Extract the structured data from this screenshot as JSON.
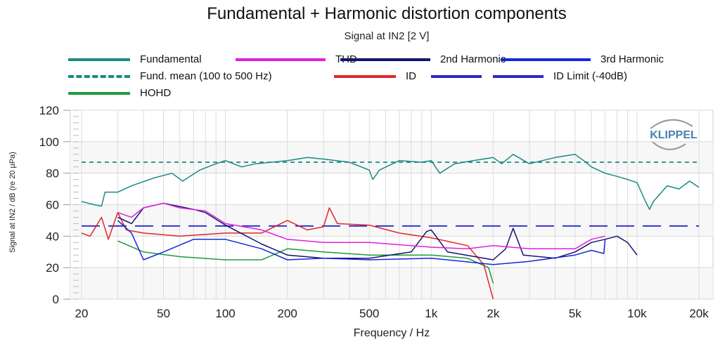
{
  "chart_data": {
    "type": "line",
    "title": "Fundamental + Harmonic distortion components",
    "subtitle": "Signal at IN2 [2 V]",
    "xlabel": "Frequency / Hz",
    "ylabel": "Signal at IN2 / dB (re 20 µPa)",
    "xscale": "log",
    "xlim": [
      17.5,
      23000
    ],
    "ylim": [
      0,
      120
    ],
    "grid": true,
    "legend_placement": "top",
    "yticks": [
      "0",
      "20",
      "40",
      "60",
      "80",
      "100",
      "120"
    ],
    "xticks": [
      {
        "v": 20,
        "l": "20"
      },
      {
        "v": 50,
        "l": "50"
      },
      {
        "v": 100,
        "l": "100"
      },
      {
        "v": 200,
        "l": "200"
      },
      {
        "v": 500,
        "l": "500"
      },
      {
        "v": 1000,
        "l": "1k"
      },
      {
        "v": 2000,
        "l": "2k"
      },
      {
        "v": 5000,
        "l": "5k"
      },
      {
        "v": 10000,
        "l": "10k"
      },
      {
        "v": 20000,
        "l": "20k"
      }
    ],
    "logo": "KLIPPEL",
    "series": [
      {
        "name": "Fundamental",
        "color": "#1a8a84",
        "dash": "solid",
        "x": [
          20,
          23,
          25,
          26,
          30,
          35,
          45,
          55,
          62,
          75,
          90,
          100,
          120,
          140,
          200,
          250,
          300,
          400,
          500,
          520,
          560,
          700,
          900,
          1000,
          1100,
          1300,
          1600,
          2000,
          2200,
          2500,
          3000,
          4000,
          5000,
          5500,
          6000,
          7000,
          8000,
          9000,
          10000,
          11000,
          11500,
          12000,
          14000,
          16000,
          18000,
          20000
        ],
        "y": [
          62,
          60,
          59,
          68,
          68,
          72,
          77,
          80,
          75,
          82,
          86,
          88,
          84,
          86,
          88,
          90,
          89,
          87,
          82,
          76,
          82,
          88,
          87,
          88,
          80,
          86,
          88,
          90,
          86,
          92,
          86,
          90,
          92,
          88,
          84,
          80,
          78,
          76,
          74,
          62,
          57,
          62,
          72,
          70,
          75,
          71
        ]
      },
      {
        "name": "Fund. mean (100 to 500 Hz)",
        "color": "#1a8a84",
        "dash": "short",
        "x": [
          20,
          20000
        ],
        "y": [
          87,
          87
        ]
      },
      {
        "name": "THD",
        "color": "#e020e0",
        "dash": "solid",
        "x": [
          30,
          35,
          40,
          50,
          60,
          80,
          100,
          150,
          200,
          300,
          500,
          1000,
          1500,
          2000,
          3000,
          5000,
          6000,
          7000
        ],
        "y": [
          55,
          52,
          58,
          61,
          58,
          56,
          48,
          44,
          38,
          36,
          36,
          33,
          32,
          34,
          32,
          32,
          38,
          40
        ]
      },
      {
        "name": "2nd Harmonic",
        "color": "#14146e",
        "dash": "solid",
        "x": [
          30,
          35,
          40,
          50,
          70,
          80,
          100,
          150,
          200,
          300,
          500,
          800,
          950,
          1000,
          1200,
          2000,
          2300,
          2500,
          2800,
          4000,
          5000,
          6000,
          7000,
          8000,
          9000,
          10000
        ],
        "y": [
          52,
          48,
          58,
          61,
          57,
          55,
          47,
          35,
          28,
          26,
          26,
          30,
          43,
          44,
          30,
          25,
          32,
          45,
          28,
          26,
          30,
          36,
          38,
          40,
          36,
          28
        ]
      },
      {
        "name": "3rd Harmonic",
        "color": "#1428d8",
        "dash": "solid",
        "x": [
          30,
          35,
          40,
          50,
          70,
          100,
          150,
          200,
          300,
          500,
          1000,
          2000,
          3000,
          5000,
          6000,
          6900,
          7000
        ],
        "y": [
          50,
          42,
          25,
          30,
          38,
          38,
          32,
          25,
          26,
          25,
          26,
          22,
          24,
          28,
          31,
          29,
          38
        ]
      },
      {
        "name": "ID",
        "color": "#e02828",
        "dash": "solid",
        "x": [
          20,
          22,
          25,
          27,
          30,
          33,
          40,
          60,
          100,
          150,
          200,
          250,
          300,
          320,
          350,
          500,
          700,
          1000,
          1500,
          1800,
          2000
        ],
        "y": [
          42,
          40,
          52,
          38,
          55,
          44,
          42,
          40,
          42,
          42,
          50,
          44,
          46,
          58,
          48,
          47,
          42,
          39,
          34,
          22,
          0
        ]
      },
      {
        "name": "ID Limit (-40dB)",
        "color": "#2828c8",
        "dash": "long",
        "x": [
          20,
          20000
        ],
        "y": [
          46.5,
          46.5
        ]
      },
      {
        "name": "HOHD",
        "color": "#1e9a3a",
        "dash": "solid",
        "x": [
          30,
          40,
          60,
          100,
          150,
          200,
          300,
          500,
          1000,
          1500,
          1900,
          2000
        ],
        "y": [
          37,
          30,
          27,
          25,
          25,
          32,
          30,
          28,
          28,
          26,
          20,
          10
        ]
      }
    ]
  }
}
